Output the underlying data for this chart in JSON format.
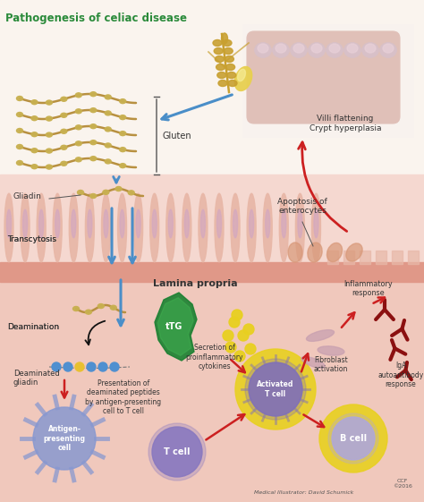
{
  "title": "Pathogenesis of celiac disease",
  "title_color": "#2a8a3a",
  "title_fontsize": 8.5,
  "fig_bg": "#f8f0ec",
  "labels": {
    "gluten": "Gluten",
    "gliadin": "Gliadin",
    "transcytosis": "Transcytosis",
    "deamination": "Deamination",
    "deaminated_gliadin": "Deaminated\ngliadin",
    "lamina_propria": "Lamina propria",
    "presentation": "Presentation of\ndeaminated peptides\nby antigen-presenting\ncell to T cell",
    "antigen_cell": "Antigen-\npresenting\ncell",
    "t_cell": "T cell",
    "activated_t": "Activated\nT cell",
    "secretion": "Secretion of\nproinflammatory\ncytokines",
    "fibroblast": "Fibroblast\nactivation",
    "inflammatory": "Inflammatory\nresponse",
    "iga": "IgA\nautoantibody\nresponse",
    "b_cell": "B cell",
    "apoptosis": "Apoptosis of\nenterocytes",
    "villi": "Villi flattening\nCrypt hyperplasia",
    "ttg": "tTG",
    "medical": "Medical Illustrator: David Schumick",
    "ccf": "CCF\n©2016"
  },
  "colors": {
    "top_bg": "#faf4ee",
    "intestine_bg": "#f5d8d0",
    "lamina_bg": "#f0c8bc",
    "villi_pink": "#e8b8a8",
    "villi_inner": "#d4a8c0",
    "wall_band": "#e09888",
    "blue_arrow": "#4a8ec8",
    "red_arrow": "#cc2020",
    "wheat_color": "#c8a030",
    "bead_color": "#c8b050",
    "ttg_color": "#1a8030",
    "ttg_light": "#40b050",
    "apc_color": "#8898d0",
    "t_cell_color": "#8878c0",
    "act_t_color": "#8070b8",
    "b_cell_color": "#b0a8d8",
    "yellow_glow": "#e8d020",
    "cytokine_color": "#e8d020",
    "fibroblast_color": "#c8a0b0",
    "antibody_color": "#8b1010",
    "black": "#111111",
    "box_border": "#888888",
    "tissue_pink": "#e0c0b8",
    "crypt_color": "#d8c0c8",
    "seed_color": "#e8d050"
  }
}
